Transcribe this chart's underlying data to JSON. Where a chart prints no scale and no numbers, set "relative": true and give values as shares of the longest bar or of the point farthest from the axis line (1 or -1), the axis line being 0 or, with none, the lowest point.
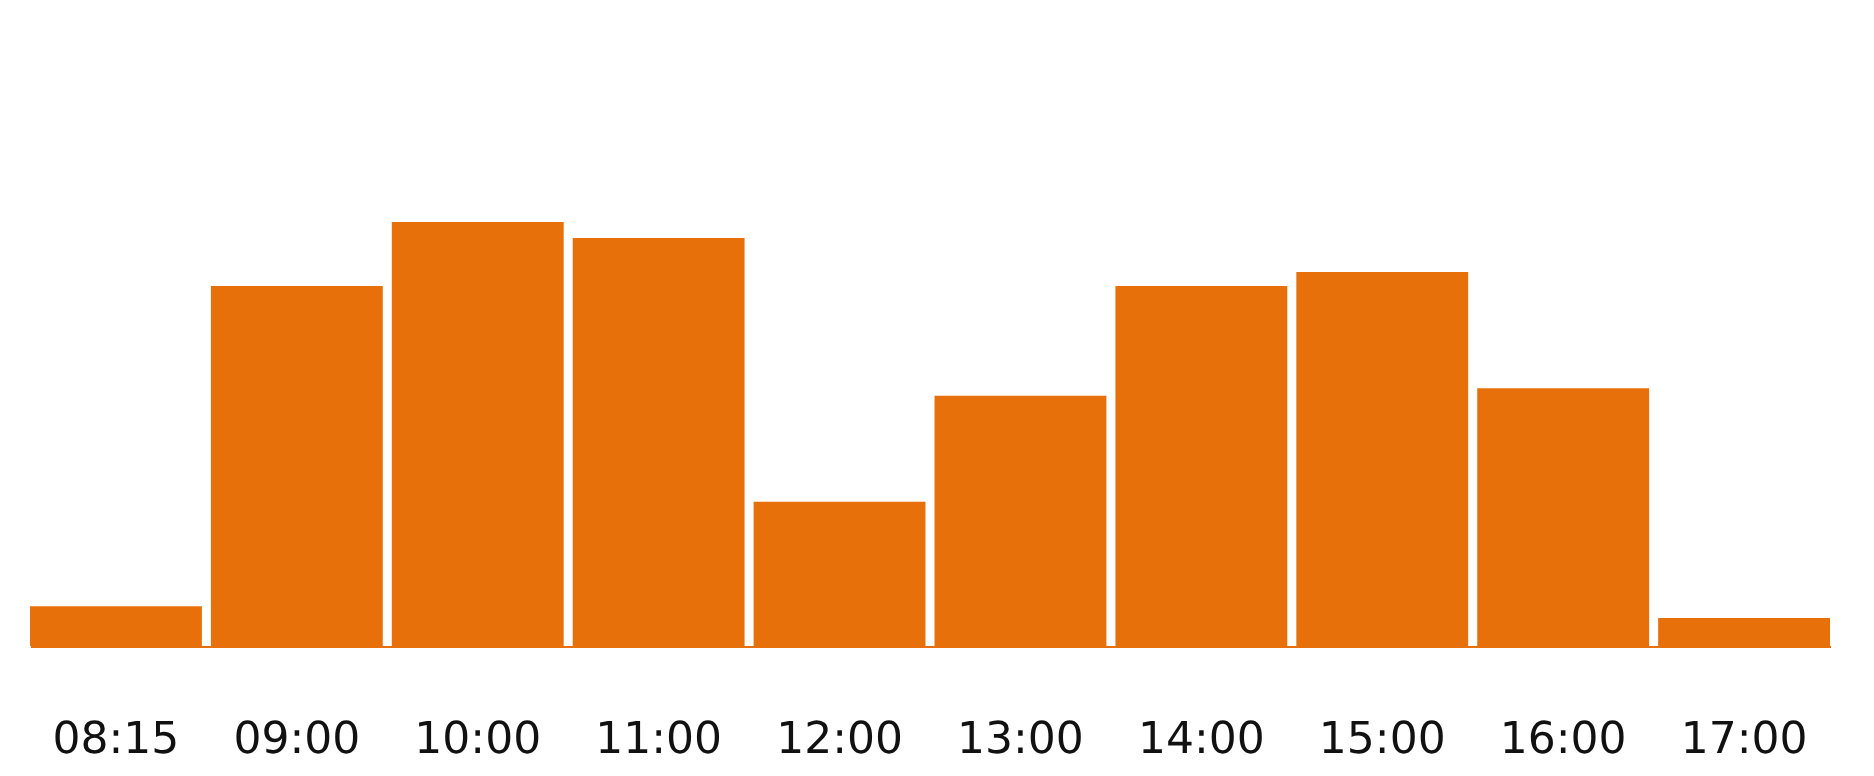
{
  "chart_data": {
    "type": "bar",
    "relative": true,
    "categories": [
      "08:15",
      "09:00",
      "10:00",
      "11:00",
      "12:00",
      "13:00",
      "14:00",
      "15:00",
      "16:00",
      "17:00"
    ],
    "values": [
      0.094,
      0.849,
      1,
      0.962,
      0.34,
      0.59,
      0.849,
      0.882,
      0.608,
      0.066
    ],
    "color": "#e8700a",
    "grid": false
  }
}
